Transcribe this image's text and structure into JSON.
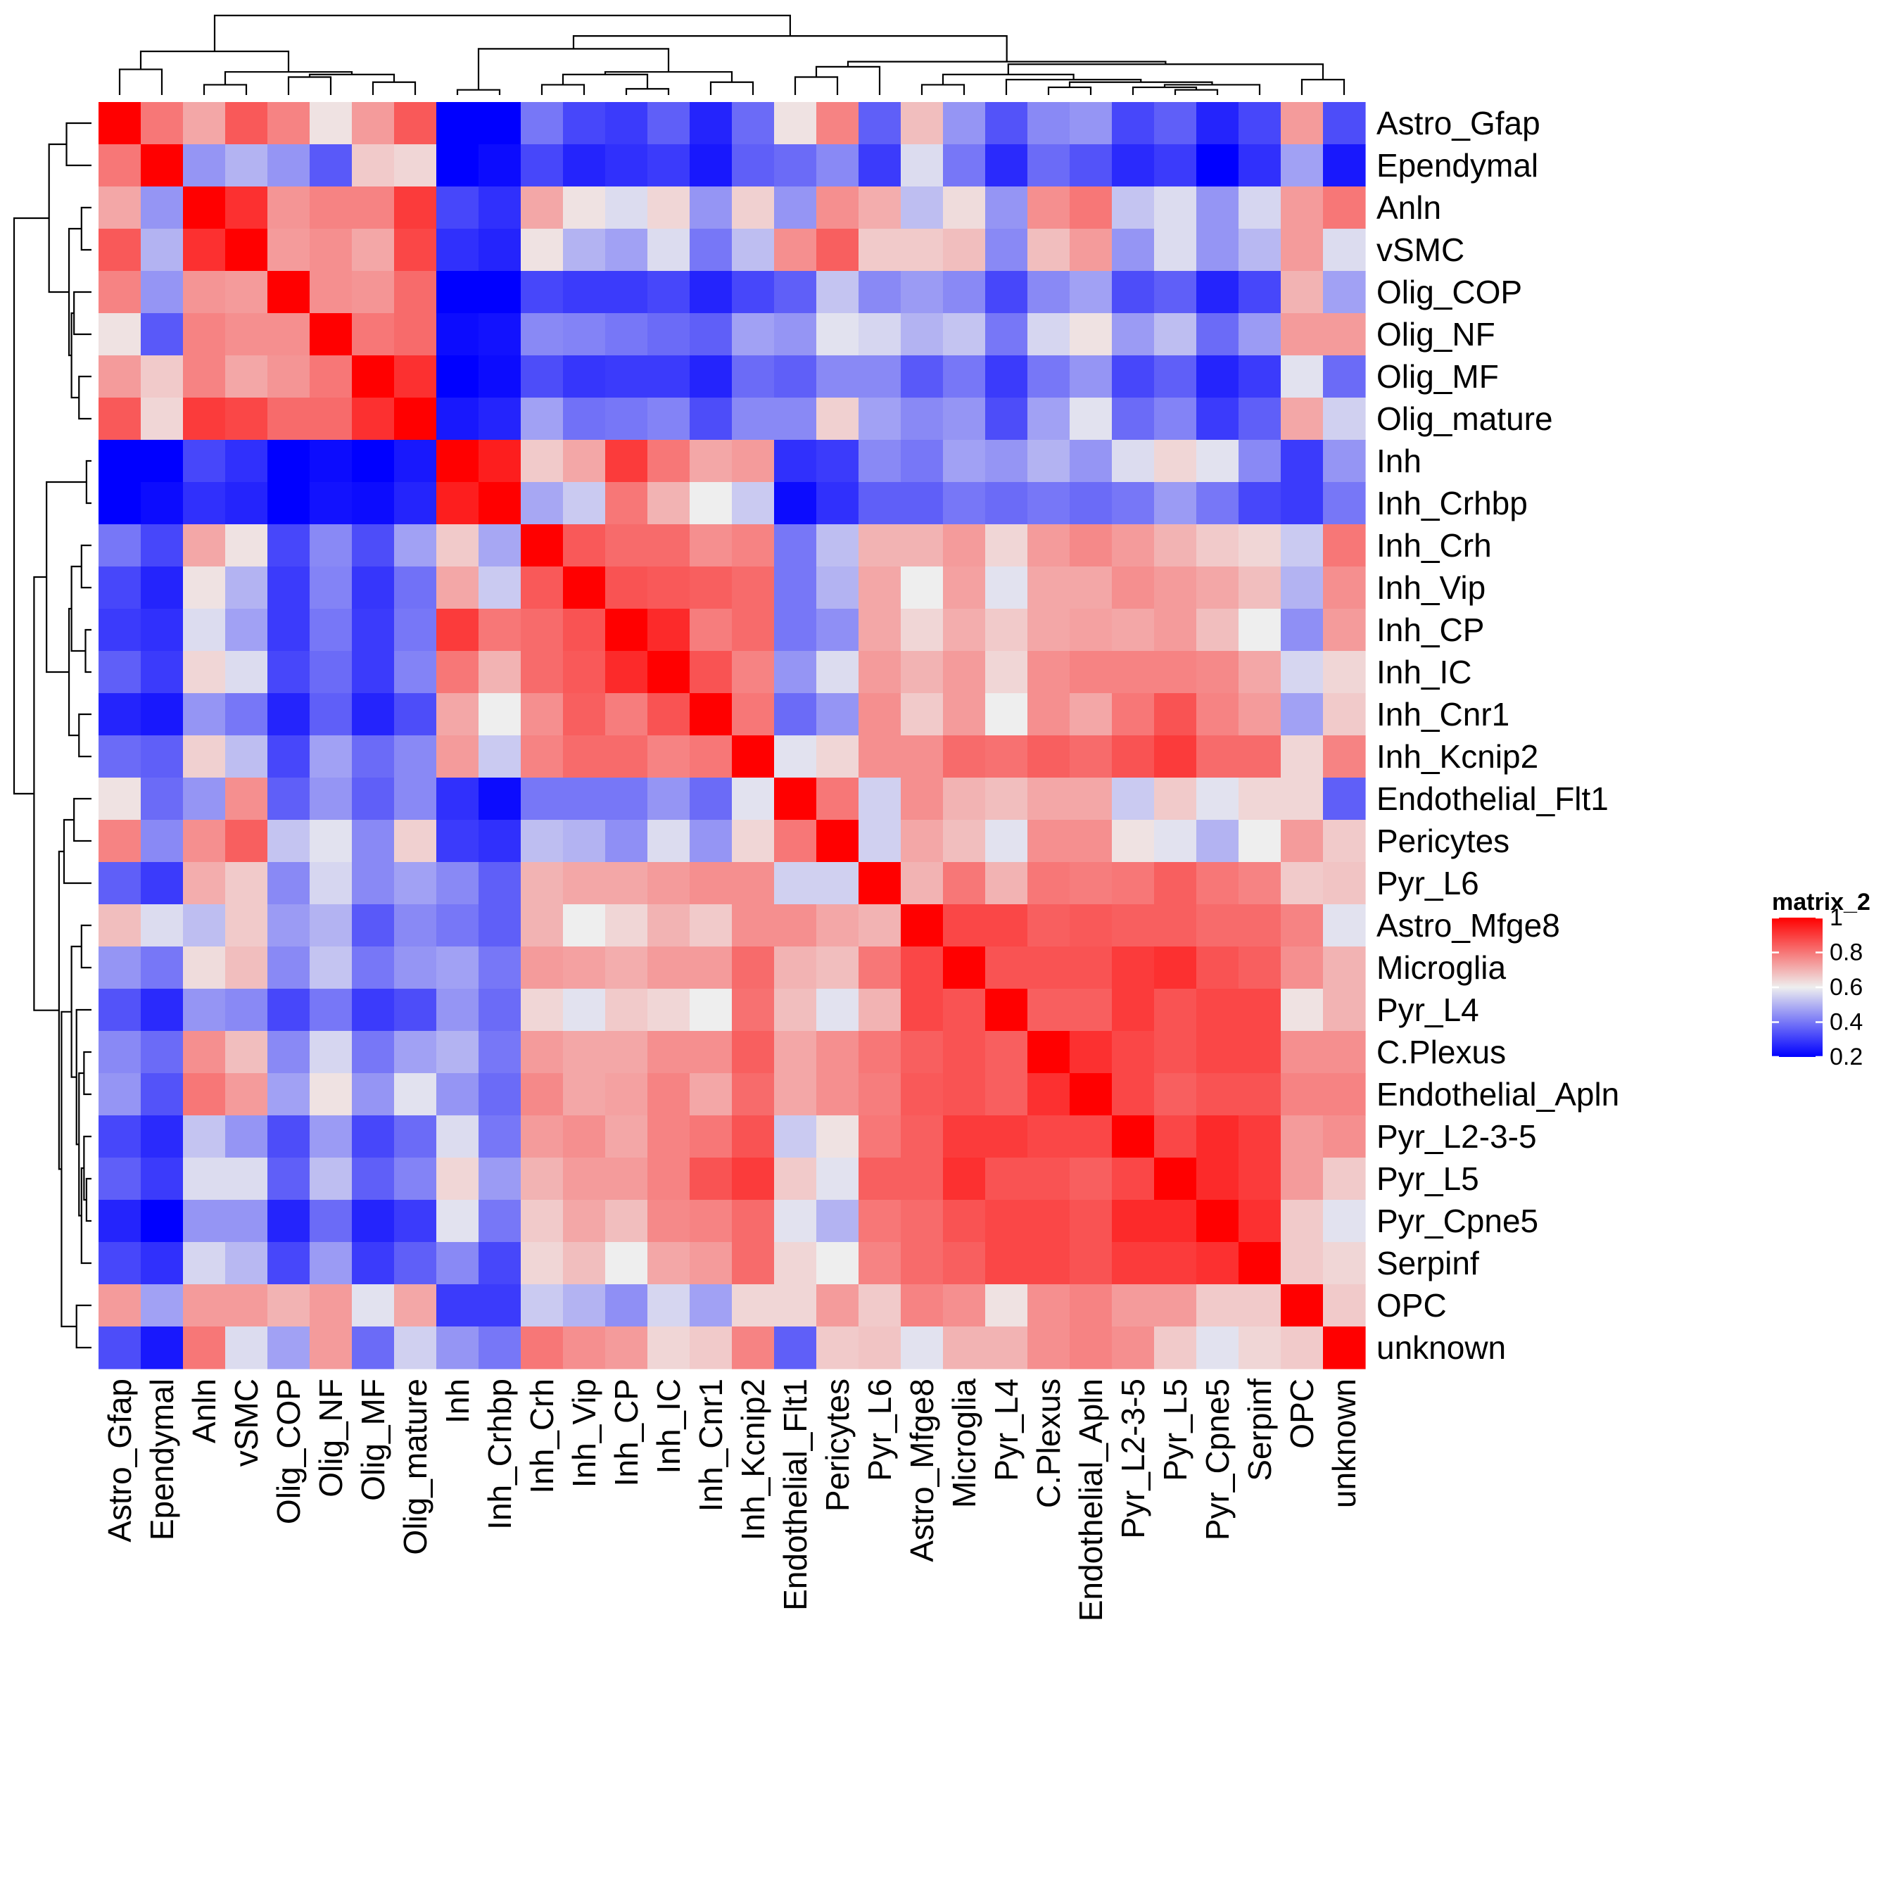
{
  "chart_data": {
    "type": "heatmap",
    "row_labels": [
      "Astro_Gfap",
      "Ependymal",
      "Anln",
      "vSMC",
      "Olig_COP",
      "Olig_NF",
      "Olig_MF",
      "Olig_mature",
      "Inh",
      "Inh_Crhbp",
      "Inh_Crh",
      "Inh_Vip",
      "Inh_CP",
      "Inh_IC",
      "Inh_Cnr1",
      "Inh_Kcnip2",
      "Endothelial_Flt1",
      "Pericytes",
      "Pyr_L6",
      "Astro_Mfge8",
      "Microglia",
      "Pyr_L4",
      "C.Plexus",
      "Endothelial_Apln",
      "Pyr_L2-3-5",
      "Pyr_L5",
      "Pyr_Cpne5",
      "Serpinf",
      "OPC",
      "unknown"
    ],
    "col_labels": [
      "Astro_Gfap",
      "Ependymal",
      "Anln",
      "vSMC",
      "Olig_COP",
      "Olig_NF",
      "Olig_MF",
      "Olig_mature",
      "Inh",
      "Inh_Crhbp",
      "Inh_Crh",
      "Inh_Vip",
      "Inh_CP",
      "Inh_IC",
      "Inh_Cnr1",
      "Inh_Kcnip2",
      "Endothelial_Flt1",
      "Pericytes",
      "Pyr_L6",
      "Astro_Mfge8",
      "Microglia",
      "Pyr_L4",
      "C.Plexus",
      "Endothelial_Apln",
      "Pyr_L2-3-5",
      "Pyr_L5",
      "Pyr_Cpne5",
      "Serpinf",
      "OPC",
      "unknown"
    ],
    "values": [
      [
        1.0,
        0.8,
        0.72,
        0.85,
        0.78,
        0.62,
        0.74,
        0.85,
        0.2,
        0.2,
        0.4,
        0.32,
        0.3,
        0.36,
        0.26,
        0.38,
        0.62,
        0.78,
        0.36,
        0.68,
        0.45,
        0.34,
        0.43,
        0.45,
        0.32,
        0.36,
        0.26,
        0.32,
        0.74,
        0.33
      ],
      [
        0.8,
        1.0,
        0.45,
        0.5,
        0.45,
        0.35,
        0.66,
        0.64,
        0.2,
        0.22,
        0.32,
        0.26,
        0.28,
        0.3,
        0.24,
        0.36,
        0.38,
        0.43,
        0.3,
        0.57,
        0.4,
        0.27,
        0.38,
        0.34,
        0.27,
        0.3,
        0.2,
        0.28,
        0.47,
        0.24
      ],
      [
        0.72,
        0.45,
        1.0,
        0.92,
        0.75,
        0.78,
        0.78,
        0.9,
        0.32,
        0.28,
        0.72,
        0.62,
        0.57,
        0.64,
        0.45,
        0.65,
        0.45,
        0.76,
        0.71,
        0.52,
        0.63,
        0.45,
        0.76,
        0.8,
        0.53,
        0.57,
        0.45,
        0.56,
        0.74,
        0.8
      ],
      [
        0.85,
        0.5,
        0.92,
        1.0,
        0.74,
        0.76,
        0.72,
        0.88,
        0.28,
        0.26,
        0.62,
        0.5,
        0.47,
        0.57,
        0.4,
        0.52,
        0.76,
        0.84,
        0.66,
        0.66,
        0.68,
        0.43,
        0.68,
        0.74,
        0.45,
        0.57,
        0.45,
        0.51,
        0.74,
        0.57
      ],
      [
        0.78,
        0.45,
        0.75,
        0.74,
        1.0,
        0.76,
        0.75,
        0.82,
        0.2,
        0.2,
        0.32,
        0.3,
        0.3,
        0.32,
        0.26,
        0.32,
        0.36,
        0.53,
        0.43,
        0.46,
        0.43,
        0.32,
        0.43,
        0.47,
        0.33,
        0.36,
        0.26,
        0.32,
        0.7,
        0.47
      ],
      [
        0.62,
        0.35,
        0.78,
        0.76,
        0.76,
        1.0,
        0.8,
        0.82,
        0.22,
        0.23,
        0.43,
        0.42,
        0.4,
        0.38,
        0.36,
        0.47,
        0.45,
        0.58,
        0.56,
        0.5,
        0.53,
        0.4,
        0.56,
        0.62,
        0.46,
        0.52,
        0.38,
        0.46,
        0.74,
        0.74
      ],
      [
        0.74,
        0.66,
        0.78,
        0.72,
        0.75,
        0.8,
        1.0,
        0.92,
        0.2,
        0.22,
        0.33,
        0.29,
        0.3,
        0.3,
        0.26,
        0.38,
        0.36,
        0.43,
        0.43,
        0.35,
        0.4,
        0.3,
        0.4,
        0.45,
        0.32,
        0.36,
        0.26,
        0.3,
        0.58,
        0.38
      ],
      [
        0.85,
        0.64,
        0.9,
        0.88,
        0.82,
        0.82,
        0.92,
        1.0,
        0.24,
        0.26,
        0.47,
        0.39,
        0.4,
        0.42,
        0.33,
        0.43,
        0.43,
        0.65,
        0.47,
        0.43,
        0.45,
        0.33,
        0.47,
        0.58,
        0.38,
        0.42,
        0.3,
        0.36,
        0.72,
        0.55
      ],
      [
        0.2,
        0.2,
        0.32,
        0.28,
        0.2,
        0.22,
        0.2,
        0.24,
        1.0,
        0.95,
        0.66,
        0.72,
        0.9,
        0.8,
        0.72,
        0.74,
        0.28,
        0.3,
        0.43,
        0.4,
        0.47,
        0.45,
        0.5,
        0.45,
        0.57,
        0.64,
        0.58,
        0.43,
        0.3,
        0.45
      ],
      [
        0.2,
        0.22,
        0.28,
        0.26,
        0.2,
        0.23,
        0.22,
        0.26,
        0.95,
        1.0,
        0.48,
        0.54,
        0.8,
        0.7,
        0.6,
        0.54,
        0.22,
        0.28,
        0.36,
        0.36,
        0.4,
        0.38,
        0.4,
        0.38,
        0.4,
        0.46,
        0.4,
        0.32,
        0.3,
        0.4
      ],
      [
        0.4,
        0.32,
        0.72,
        0.62,
        0.32,
        0.43,
        0.33,
        0.47,
        0.66,
        0.48,
        1.0,
        0.85,
        0.82,
        0.82,
        0.76,
        0.78,
        0.4,
        0.52,
        0.7,
        0.7,
        0.74,
        0.64,
        0.74,
        0.77,
        0.74,
        0.7,
        0.66,
        0.64,
        0.54,
        0.8
      ],
      [
        0.32,
        0.26,
        0.62,
        0.5,
        0.3,
        0.42,
        0.29,
        0.39,
        0.72,
        0.54,
        0.85,
        1.0,
        0.86,
        0.85,
        0.84,
        0.82,
        0.4,
        0.5,
        0.72,
        0.6,
        0.73,
        0.58,
        0.72,
        0.72,
        0.76,
        0.74,
        0.72,
        0.68,
        0.5,
        0.76
      ],
      [
        0.3,
        0.28,
        0.57,
        0.47,
        0.3,
        0.4,
        0.3,
        0.4,
        0.9,
        0.8,
        0.82,
        0.86,
        1.0,
        0.93,
        0.79,
        0.82,
        0.4,
        0.44,
        0.72,
        0.64,
        0.71,
        0.66,
        0.72,
        0.73,
        0.72,
        0.74,
        0.68,
        0.6,
        0.44,
        0.74
      ],
      [
        0.36,
        0.3,
        0.64,
        0.57,
        0.32,
        0.38,
        0.3,
        0.42,
        0.8,
        0.7,
        0.82,
        0.85,
        0.93,
        1.0,
        0.86,
        0.78,
        0.45,
        0.57,
        0.74,
        0.7,
        0.74,
        0.64,
        0.76,
        0.78,
        0.78,
        0.78,
        0.77,
        0.72,
        0.56,
        0.64
      ],
      [
        0.26,
        0.24,
        0.45,
        0.4,
        0.26,
        0.36,
        0.26,
        0.33,
        0.72,
        0.6,
        0.76,
        0.84,
        0.79,
        0.86,
        1.0,
        0.8,
        0.38,
        0.45,
        0.76,
        0.66,
        0.74,
        0.6,
        0.76,
        0.72,
        0.8,
        0.86,
        0.78,
        0.74,
        0.47,
        0.66
      ],
      [
        0.38,
        0.36,
        0.65,
        0.52,
        0.32,
        0.47,
        0.38,
        0.43,
        0.74,
        0.54,
        0.78,
        0.82,
        0.82,
        0.78,
        0.8,
        1.0,
        0.58,
        0.64,
        0.76,
        0.76,
        0.82,
        0.81,
        0.84,
        0.82,
        0.86,
        0.9,
        0.82,
        0.82,
        0.64,
        0.78
      ],
      [
        0.62,
        0.38,
        0.45,
        0.76,
        0.36,
        0.45,
        0.36,
        0.43,
        0.28,
        0.22,
        0.4,
        0.4,
        0.4,
        0.45,
        0.38,
        0.58,
        1.0,
        0.8,
        0.55,
        0.76,
        0.7,
        0.68,
        0.72,
        0.72,
        0.54,
        0.66,
        0.58,
        0.64,
        0.64,
        0.36
      ],
      [
        0.78,
        0.43,
        0.76,
        0.84,
        0.53,
        0.58,
        0.43,
        0.65,
        0.3,
        0.28,
        0.52,
        0.5,
        0.44,
        0.57,
        0.45,
        0.64,
        0.8,
        1.0,
        0.55,
        0.72,
        0.68,
        0.58,
        0.76,
        0.76,
        0.62,
        0.58,
        0.5,
        0.6,
        0.74,
        0.66
      ],
      [
        0.36,
        0.3,
        0.71,
        0.66,
        0.43,
        0.56,
        0.43,
        0.47,
        0.43,
        0.36,
        0.7,
        0.72,
        0.72,
        0.74,
        0.76,
        0.76,
        0.55,
        0.55,
        1.0,
        0.7,
        0.8,
        0.7,
        0.8,
        0.79,
        0.8,
        0.84,
        0.8,
        0.78,
        0.66,
        0.67
      ],
      [
        0.68,
        0.57,
        0.52,
        0.66,
        0.46,
        0.5,
        0.35,
        0.43,
        0.4,
        0.36,
        0.7,
        0.6,
        0.64,
        0.7,
        0.66,
        0.76,
        0.76,
        0.72,
        0.7,
        1.0,
        0.88,
        0.88,
        0.84,
        0.85,
        0.84,
        0.84,
        0.82,
        0.82,
        0.78,
        0.58
      ],
      [
        0.45,
        0.4,
        0.63,
        0.68,
        0.43,
        0.53,
        0.4,
        0.45,
        0.47,
        0.4,
        0.74,
        0.73,
        0.71,
        0.74,
        0.74,
        0.82,
        0.7,
        0.68,
        0.8,
        0.88,
        1.0,
        0.86,
        0.86,
        0.86,
        0.9,
        0.92,
        0.86,
        0.84,
        0.76,
        0.7
      ],
      [
        0.34,
        0.27,
        0.45,
        0.43,
        0.32,
        0.4,
        0.3,
        0.33,
        0.45,
        0.38,
        0.64,
        0.58,
        0.66,
        0.64,
        0.6,
        0.81,
        0.68,
        0.58,
        0.7,
        0.88,
        0.86,
        1.0,
        0.84,
        0.84,
        0.9,
        0.86,
        0.88,
        0.88,
        0.62,
        0.7
      ],
      [
        0.43,
        0.38,
        0.76,
        0.68,
        0.43,
        0.56,
        0.4,
        0.47,
        0.5,
        0.4,
        0.74,
        0.72,
        0.72,
        0.76,
        0.76,
        0.84,
        0.72,
        0.76,
        0.8,
        0.84,
        0.86,
        0.84,
        1.0,
        0.92,
        0.88,
        0.86,
        0.88,
        0.88,
        0.76,
        0.76
      ],
      [
        0.45,
        0.34,
        0.8,
        0.74,
        0.47,
        0.62,
        0.45,
        0.58,
        0.45,
        0.38,
        0.77,
        0.72,
        0.73,
        0.78,
        0.72,
        0.82,
        0.72,
        0.76,
        0.79,
        0.85,
        0.86,
        0.84,
        0.92,
        1.0,
        0.88,
        0.84,
        0.86,
        0.86,
        0.78,
        0.78
      ],
      [
        0.32,
        0.27,
        0.53,
        0.45,
        0.33,
        0.46,
        0.32,
        0.38,
        0.57,
        0.4,
        0.74,
        0.76,
        0.72,
        0.78,
        0.8,
        0.86,
        0.54,
        0.62,
        0.8,
        0.84,
        0.9,
        0.9,
        0.88,
        0.88,
        1.0,
        0.88,
        0.93,
        0.9,
        0.74,
        0.76
      ],
      [
        0.36,
        0.3,
        0.57,
        0.57,
        0.36,
        0.52,
        0.36,
        0.42,
        0.64,
        0.46,
        0.7,
        0.74,
        0.74,
        0.78,
        0.86,
        0.9,
        0.66,
        0.58,
        0.84,
        0.84,
        0.92,
        0.86,
        0.86,
        0.84,
        0.88,
        1.0,
        0.93,
        0.9,
        0.74,
        0.66
      ],
      [
        0.26,
        0.2,
        0.45,
        0.45,
        0.26,
        0.38,
        0.26,
        0.3,
        0.58,
        0.4,
        0.66,
        0.72,
        0.68,
        0.77,
        0.78,
        0.82,
        0.58,
        0.5,
        0.8,
        0.82,
        0.86,
        0.88,
        0.88,
        0.86,
        0.93,
        0.93,
        1.0,
        0.92,
        0.66,
        0.58
      ],
      [
        0.32,
        0.28,
        0.56,
        0.51,
        0.32,
        0.46,
        0.3,
        0.36,
        0.43,
        0.32,
        0.64,
        0.68,
        0.6,
        0.72,
        0.74,
        0.82,
        0.64,
        0.6,
        0.78,
        0.82,
        0.84,
        0.88,
        0.88,
        0.86,
        0.9,
        0.9,
        0.92,
        1.0,
        0.66,
        0.64
      ],
      [
        0.74,
        0.47,
        0.74,
        0.74,
        0.7,
        0.74,
        0.58,
        0.72,
        0.3,
        0.3,
        0.54,
        0.5,
        0.44,
        0.56,
        0.47,
        0.64,
        0.64,
        0.74,
        0.66,
        0.78,
        0.76,
        0.62,
        0.76,
        0.78,
        0.74,
        0.74,
        0.66,
        0.66,
        1.0,
        0.66
      ],
      [
        0.33,
        0.24,
        0.8,
        0.57,
        0.47,
        0.74,
        0.38,
        0.55,
        0.45,
        0.4,
        0.8,
        0.76,
        0.74,
        0.64,
        0.66,
        0.78,
        0.36,
        0.66,
        0.67,
        0.58,
        0.7,
        0.7,
        0.76,
        0.78,
        0.76,
        0.66,
        0.58,
        0.64,
        0.66,
        1.0
      ]
    ],
    "colorscale": [
      {
        "value": 0.2,
        "color": "#0000ff"
      },
      {
        "value": 0.6,
        "color": "#eeeeee"
      },
      {
        "value": 1.0,
        "color": "#ff0000"
      }
    ],
    "legend": {
      "title": "matrix_2",
      "ticks": [
        1,
        0.8,
        0.6,
        0.4,
        0.2
      ],
      "tick_labels": [
        "1",
        "0.8",
        "0.6",
        "0.4",
        "0.2"
      ],
      "placement": "right"
    },
    "row_dendrogram_side": "left",
    "col_dendrogram_side": "top"
  }
}
